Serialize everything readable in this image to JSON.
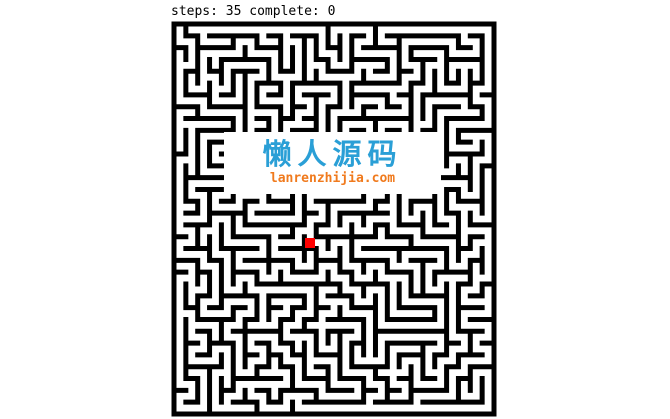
{
  "status": {
    "steps_label": "steps:",
    "steps": "35",
    "complete_label": "complete:",
    "complete": "0"
  },
  "maze": {
    "cols": 27,
    "rows": 33,
    "seed": 20240,
    "wall_color": "#000000",
    "path_color": "#ffffff",
    "player": {
      "col": 11,
      "row": 18,
      "color": "#ff0000"
    }
  },
  "watermark": {
    "title": "懒人源码",
    "subtitle": "lanrenzhijia.com",
    "title_color": "#2a9fd6",
    "subtitle_color": "#f07a1d"
  }
}
